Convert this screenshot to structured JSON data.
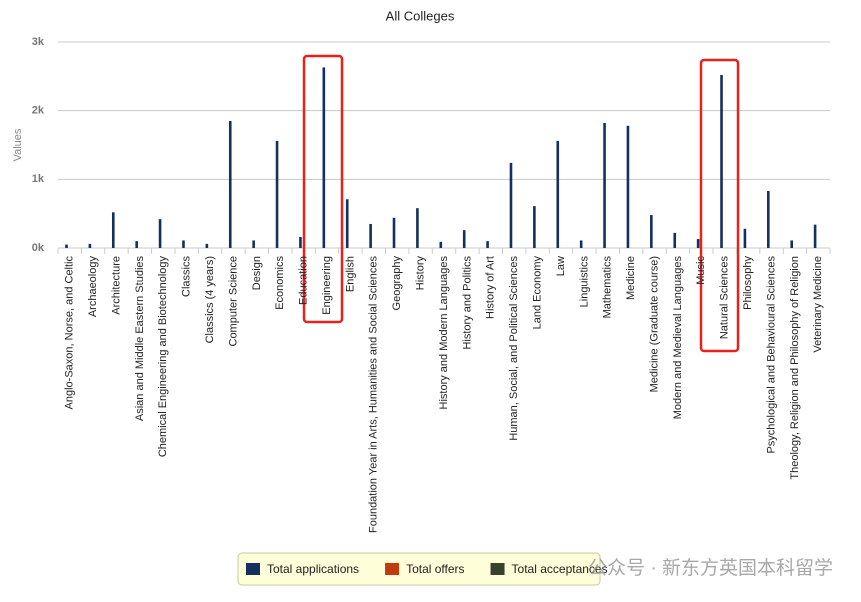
{
  "chart_data": {
    "type": "bar",
    "title": "All Colleges",
    "y_label": "Values",
    "categories": [
      "Anglo-Saxon, Norse, and Celtic",
      "Archaeology",
      "Architecture",
      "Asian and Middle Eastern Studies",
      "Chemical Engineering and Biotechnology",
      "Classics",
      "Classics (4 years)",
      "Computer Science",
      "Design",
      "Economics",
      "Education",
      "Engineering",
      "English",
      "Foundation Year in Arts, Humanities and Social Sciences",
      "Geography",
      "History",
      "History and Modern Languages",
      "History and Politics",
      "History of Art",
      "Human, Social, and Political Sciences",
      "Land Economy",
      "Law",
      "Linguistics",
      "Mathematics",
      "Medicine",
      "Medicine (Graduate course)",
      "Modern and Medieval Languages",
      "Music",
      "Natural Sciences",
      "Philosophy",
      "Psychological and Behavioural Sciences",
      "Theology, Religion and Philosophy of Religion",
      "Veterinary Medicine"
    ],
    "series": [
      {
        "name": "Total applications",
        "color": "#13305e",
        "values": [
          50,
          60,
          520,
          100,
          420,
          110,
          60,
          1850,
          110,
          1560,
          160,
          2630,
          710,
          350,
          440,
          580,
          90,
          260,
          100,
          1240,
          610,
          1560,
          110,
          1820,
          1780,
          480,
          220,
          130,
          2520,
          280,
          830,
          110,
          340
        ]
      },
      {
        "name": "Total offers",
        "color": "#c23b0c",
        "values": [
          null,
          null,
          null,
          null,
          null,
          null,
          null,
          null,
          null,
          null,
          null,
          null,
          null,
          null,
          null,
          null,
          null,
          null,
          null,
          null,
          null,
          null,
          null,
          null,
          null,
          null,
          null,
          null,
          null,
          null,
          null,
          null,
          null
        ]
      },
      {
        "name": "Total acceptances",
        "color": "#36432a",
        "values": [
          null,
          null,
          null,
          null,
          null,
          null,
          null,
          null,
          null,
          null,
          null,
          null,
          null,
          null,
          null,
          null,
          null,
          null,
          null,
          null,
          null,
          null,
          null,
          null,
          null,
          null,
          null,
          null,
          null,
          null,
          null,
          null,
          null
        ]
      }
    ],
    "ylim": [
      0,
      3000
    ],
    "yticks": [
      {
        "value": 0,
        "label": "0k"
      },
      {
        "value": 1000,
        "label": "1k"
      },
      {
        "value": 2000,
        "label": "2k"
      },
      {
        "value": 3000,
        "label": "3k"
      }
    ],
    "grid": true,
    "watermark": "公众号 · 新东方英国本科留学"
  }
}
